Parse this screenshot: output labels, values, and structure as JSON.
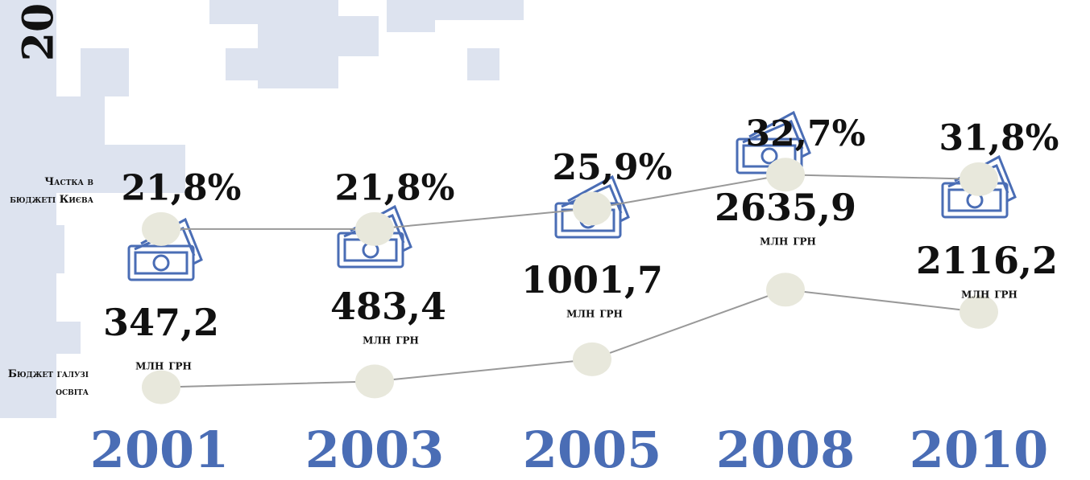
{
  "chart_data": {
    "type": "line",
    "corner_text": "20",
    "categories": [
      "2001",
      "2003",
      "2005",
      "2008",
      "2010"
    ],
    "units": "млн грн",
    "line_color": "#999999",
    "marker_color": "#e8e8dc",
    "category_color": "#4a6db5",
    "series": [
      {
        "name": "Частка в бюджеті Києва",
        "values": [
          21.8,
          21.8,
          25.9,
          32.7,
          31.8
        ],
        "value_labels": [
          "21,8%",
          "21,8%",
          "25,9%",
          "32,7%",
          "31,8%"
        ]
      },
      {
        "name": "Бюджет галузі освіта",
        "values": [
          347.2,
          483.4,
          1001.7,
          2635.9,
          2116.2
        ],
        "value_labels": [
          "347,2",
          "483,4",
          "1001,7",
          "2635,9",
          "2116,2"
        ]
      }
    ]
  }
}
